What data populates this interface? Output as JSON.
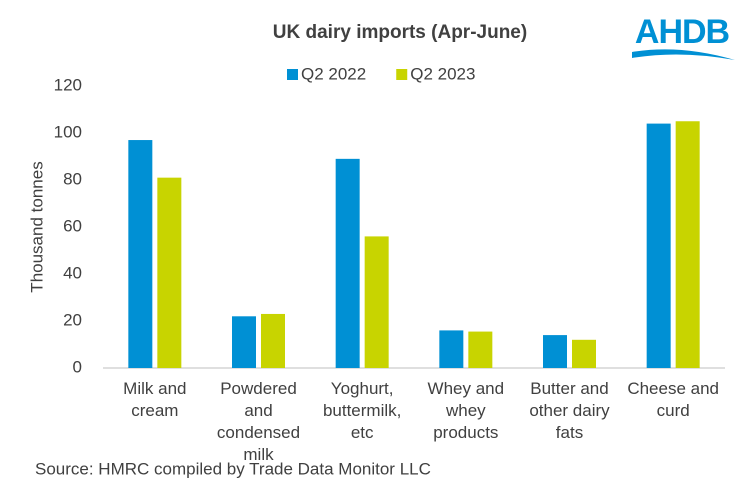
{
  "chart_data": {
    "type": "bar",
    "title": "UK dairy imports (Apr-June)",
    "logo": "AHDB",
    "y_label": "Thousand tonnes",
    "source": "Source: HMRC compiled by Trade Data Monitor LLC",
    "categories": [
      "Milk and cream",
      "Powdered and condensed milk",
      "Yoghurt, buttermilk, etc",
      "Whey and whey products",
      "Butter and other dairy fats",
      "Cheese and curd"
    ],
    "series": [
      {
        "name": "Q2 2022",
        "color": "#0090d4",
        "values": [
          97,
          22,
          89,
          16,
          14,
          104
        ]
      },
      {
        "name": "Q2 2023",
        "color": "#c8d400",
        "values": [
          81,
          23,
          56,
          15.5,
          12,
          105
        ]
      }
    ],
    "ylim": [
      0,
      120
    ],
    "yticks": [
      0,
      20,
      40,
      60,
      80,
      100,
      120
    ],
    "grid": false,
    "legend": "top"
  }
}
